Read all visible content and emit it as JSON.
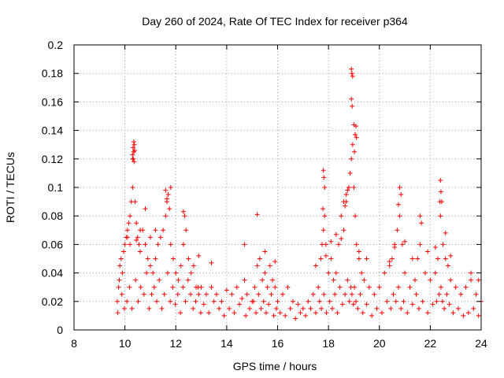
{
  "chart_data": {
    "type": "scatter",
    "title": "Day 260 of 2024, Rate Of TEC Index for receiver p364",
    "xlabel": "GPS time / hours",
    "ylabel": "ROTI / TECUs",
    "xlim": [
      8,
      24
    ],
    "ylim": [
      0,
      0.2
    ],
    "xticks": [
      8,
      10,
      12,
      14,
      16,
      18,
      20,
      22,
      24
    ],
    "xtick_labels": [
      "8",
      "10",
      "12",
      "14",
      "16",
      "18",
      "20",
      "22",
      "24"
    ],
    "yticks": [
      0,
      0.02,
      0.04,
      0.06,
      0.08,
      0.1,
      0.12,
      0.14,
      0.16,
      0.18,
      0.2
    ],
    "ytick_labels": [
      "0",
      "0.02",
      "0.04",
      "0.06",
      "0.08",
      "0.1",
      "0.12",
      "0.14",
      "0.16",
      "0.18",
      "0.2"
    ],
    "grid": true,
    "marker": "+",
    "color": "#ff0000",
    "series": [
      {
        "name": "ROTI",
        "x": [
          9.7,
          9.75,
          9.8,
          9.85,
          9.9,
          9.95,
          10.0,
          10.05,
          10.1,
          10.15,
          10.2,
          10.25,
          10.3,
          10.33,
          10.35,
          10.37,
          10.4,
          10.45,
          10.5,
          10.55,
          10.6,
          10.7,
          10.8,
          10.9,
          11.0,
          11.1,
          11.2,
          11.3,
          11.4,
          11.5,
          11.6,
          11.65,
          11.7,
          11.75,
          11.8,
          11.9,
          12.0,
          12.1,
          12.2,
          12.3,
          12.4,
          12.5,
          12.6,
          12.7,
          12.8,
          12.9,
          13.0,
          13.2,
          13.4,
          13.6,
          13.8,
          14.0,
          14.2,
          14.4,
          14.6,
          14.7,
          14.8,
          15.0,
          15.1,
          15.2,
          15.3,
          15.4,
          15.5,
          15.6,
          15.7,
          15.8,
          15.9,
          16.0,
          16.2,
          16.4,
          16.6,
          16.8,
          17.0,
          17.2,
          17.4,
          17.6,
          17.7,
          17.75,
          17.8,
          17.85,
          17.9,
          18.0,
          18.1,
          18.2,
          18.3,
          18.4,
          18.5,
          18.6,
          18.7,
          18.8,
          18.85,
          18.9,
          18.95,
          19.0,
          19.05,
          19.1,
          19.2,
          19.3,
          19.4,
          19.6,
          19.8,
          20.0,
          20.2,
          20.4,
          20.5,
          20.6,
          20.7,
          20.8,
          20.9,
          21.0,
          21.2,
          21.4,
          21.5,
          21.6,
          21.8,
          22.0,
          22.2,
          22.3,
          22.4,
          22.45,
          22.5,
          22.6,
          22.7,
          22.8,
          23.0,
          23.2,
          23.4,
          23.6,
          23.8,
          24.0,
          9.72,
          9.78,
          9.88,
          9.98,
          10.08,
          10.18,
          10.28,
          10.42,
          10.52,
          10.62,
          10.75,
          10.85,
          10.95,
          11.05,
          11.15,
          11.25,
          11.35,
          11.45,
          11.55,
          11.68,
          11.78,
          11.88,
          11.98,
          12.08,
          12.18,
          12.28,
          12.38,
          12.48,
          12.58,
          12.68,
          12.78,
          12.88,
          12.98,
          13.1,
          13.3,
          13.5,
          13.7,
          13.9,
          14.1,
          14.3,
          14.5,
          14.75,
          14.9,
          15.05,
          15.15,
          15.25,
          15.35,
          15.45,
          15.55,
          15.65,
          15.75,
          15.85,
          15.95,
          16.1,
          16.3,
          16.5,
          16.7,
          16.9,
          17.1,
          17.3,
          17.5,
          17.65,
          17.72,
          17.82,
          17.92,
          18.05,
          18.15,
          18.25,
          18.35,
          18.45,
          18.55,
          18.65,
          18.75,
          18.82,
          18.88,
          18.92,
          18.98,
          19.02,
          19.08,
          19.15,
          19.25,
          19.35,
          19.5,
          19.7,
          19.9,
          20.1,
          20.3,
          20.45,
          20.55,
          20.65,
          20.75,
          20.85,
          20.95,
          21.1,
          21.3,
          21.45,
          21.55,
          21.7,
          21.9,
          22.1,
          22.25,
          22.35,
          22.42,
          22.48,
          22.55,
          22.65,
          22.75,
          22.9,
          23.1,
          23.3,
          23.5,
          23.7,
          23.9,
          10.3,
          10.32,
          10.35,
          10.38,
          10.3,
          10.36,
          18.9,
          18.92,
          18.95,
          18.9,
          18.93,
          19.0,
          19.05,
          19.1,
          19.08,
          19.02,
          17.8,
          17.85,
          17.82,
          17.78,
          18.6,
          18.7,
          18.65,
          18.75,
          20.8,
          20.85,
          20.75,
          21.6,
          21.65,
          22.4,
          22.42,
          22.38,
          22.6,
          11.6,
          11.8,
          11.65,
          12.3,
          12.35,
          10.1,
          10.2,
          10.45,
          10.6,
          10.8,
          11.0,
          11.2,
          15.2,
          14.7,
          15.5,
          15.9,
          17.5,
          17.9,
          18.1,
          18.3,
          18.5,
          19.2,
          19.5,
          20.4,
          20.6,
          21.0,
          21.3,
          21.9,
          22.2,
          22.8,
          23.6,
          23.9,
          13.4,
          12.9
        ],
        "y": [
          0.02,
          0.03,
          0.045,
          0.05,
          0.04,
          0.055,
          0.06,
          0.065,
          0.07,
          0.075,
          0.08,
          0.09,
          0.1,
          0.12,
          0.125,
          0.13,
          0.09,
          0.075,
          0.065,
          0.06,
          0.055,
          0.07,
          0.06,
          0.05,
          0.045,
          0.04,
          0.05,
          0.06,
          0.065,
          0.07,
          0.08,
          0.09,
          0.095,
          0.085,
          0.06,
          0.05,
          0.04,
          0.035,
          0.045,
          0.06,
          0.07,
          0.05,
          0.04,
          0.045,
          0.03,
          0.025,
          0.03,
          0.025,
          0.03,
          0.025,
          0.02,
          0.028,
          0.025,
          0.03,
          0.022,
          0.035,
          0.025,
          0.02,
          0.03,
          0.045,
          0.05,
          0.035,
          0.04,
          0.03,
          0.045,
          0.035,
          0.03,
          0.02,
          0.025,
          0.03,
          0.02,
          0.018,
          0.015,
          0.02,
          0.025,
          0.03,
          0.05,
          0.06,
          0.07,
          0.08,
          0.06,
          0.04,
          0.05,
          0.035,
          0.04,
          0.06,
          0.08,
          0.07,
          0.09,
          0.1,
          0.11,
          0.12,
          0.13,
          0.1,
          0.08,
          0.06,
          0.05,
          0.04,
          0.035,
          0.03,
          0.025,
          0.03,
          0.04,
          0.045,
          0.05,
          0.06,
          0.07,
          0.08,
          0.06,
          0.04,
          0.03,
          0.035,
          0.05,
          0.06,
          0.04,
          0.035,
          0.04,
          0.05,
          0.08,
          0.09,
          0.06,
          0.05,
          0.045,
          0.035,
          0.03,
          0.025,
          0.03,
          0.035,
          0.025,
          0.02,
          0.012,
          0.035,
          0.025,
          0.015,
          0.02,
          0.03,
          0.015,
          0.035,
          0.02,
          0.03,
          0.025,
          0.04,
          0.015,
          0.025,
          0.03,
          0.02,
          0.035,
          0.015,
          0.025,
          0.04,
          0.02,
          0.03,
          0.018,
          0.025,
          0.012,
          0.03,
          0.02,
          0.035,
          0.025,
          0.015,
          0.02,
          0.03,
          0.012,
          0.018,
          0.012,
          0.02,
          0.015,
          0.01,
          0.015,
          0.012,
          0.018,
          0.01,
          0.015,
          0.02,
          0.012,
          0.025,
          0.015,
          0.02,
          0.012,
          0.018,
          0.025,
          0.01,
          0.015,
          0.012,
          0.01,
          0.015,
          0.008,
          0.012,
          0.01,
          0.015,
          0.012,
          0.02,
          0.015,
          0.025,
          0.012,
          0.02,
          0.015,
          0.025,
          0.012,
          0.03,
          0.018,
          0.025,
          0.035,
          0.02,
          0.03,
          0.025,
          0.018,
          0.03,
          0.02,
          0.015,
          0.025,
          0.012,
          0.018,
          0.01,
          0.015,
          0.012,
          0.02,
          0.015,
          0.025,
          0.02,
          0.03,
          0.015,
          0.02,
          0.012,
          0.018,
          0.025,
          0.015,
          0.02,
          0.012,
          0.018,
          0.02,
          0.025,
          0.03,
          0.02,
          0.015,
          0.025,
          0.018,
          0.012,
          0.015,
          0.01,
          0.012,
          0.015,
          0.01,
          0.123,
          0.128,
          0.132,
          0.126,
          0.12,
          0.118,
          0.183,
          0.18,
          0.178,
          0.162,
          0.157,
          0.144,
          0.137,
          0.135,
          0.143,
          0.125,
          0.112,
          0.1,
          0.107,
          0.085,
          0.09,
          0.095,
          0.087,
          0.098,
          0.1,
          0.095,
          0.088,
          0.08,
          0.075,
          0.105,
          0.097,
          0.09,
          0.068,
          0.098,
          0.1,
          0.092,
          0.083,
          0.08,
          0.065,
          0.06,
          0.063,
          0.07,
          0.085,
          0.065,
          0.07,
          0.081,
          0.06,
          0.055,
          0.048,
          0.045,
          0.052,
          0.062,
          0.067,
          0.064,
          0.055,
          0.05,
          0.048,
          0.058,
          0.062,
          0.05,
          0.055,
          0.058,
          0.052,
          0.04,
          0.035,
          0.047,
          0.052
        ]
      }
    ]
  }
}
